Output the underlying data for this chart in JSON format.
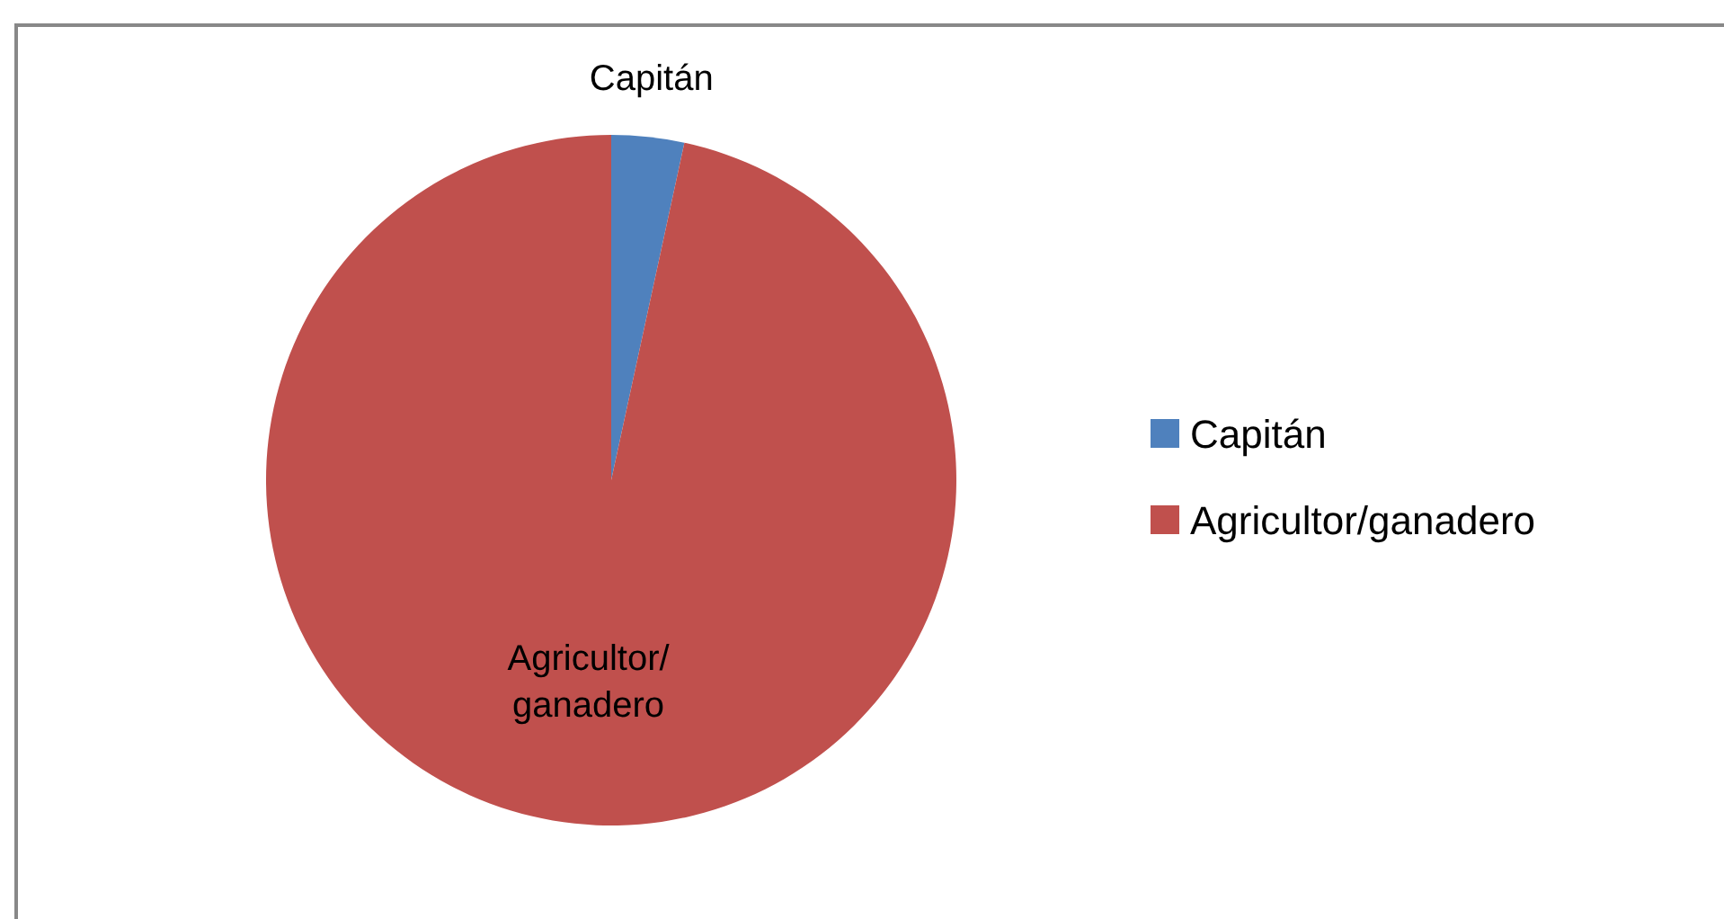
{
  "chart_data": {
    "type": "pie",
    "categories": [
      "Capitán",
      "Agricultor/ganadero"
    ],
    "values": [
      3.4,
      96.6
    ],
    "colors": [
      "#4f81bd",
      "#c0504d"
    ],
    "legend": "right"
  }
}
